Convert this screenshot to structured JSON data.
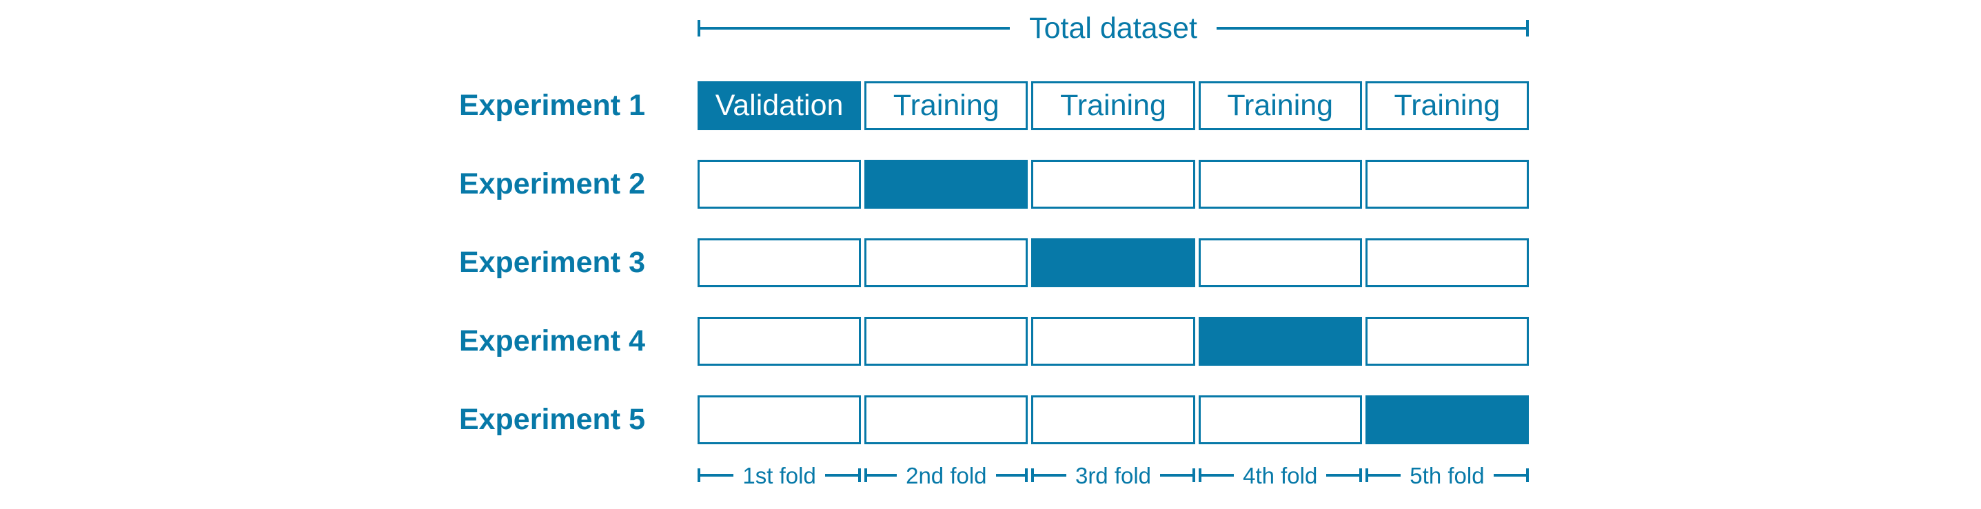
{
  "colors": {
    "accent": "#0779a8",
    "background": "#ffffff",
    "validation_cell_text": "#ffffff"
  },
  "header": {
    "total_dataset_label": "Total dataset"
  },
  "experiments": [
    {
      "label": "Experiment 1",
      "highlighted_fold": 1,
      "cells": [
        "Validation",
        "Training",
        "Training",
        "Training",
        "Training"
      ]
    },
    {
      "label": "Experiment 2",
      "highlighted_fold": 2,
      "cells": [
        "",
        "",
        "",
        "",
        ""
      ]
    },
    {
      "label": "Experiment 3",
      "highlighted_fold": 3,
      "cells": [
        "",
        "",
        "",
        "",
        ""
      ]
    },
    {
      "label": "Experiment 4",
      "highlighted_fold": 4,
      "cells": [
        "",
        "",
        "",
        "",
        ""
      ]
    },
    {
      "label": "Experiment 5",
      "highlighted_fold": 5,
      "cells": [
        "",
        "",
        "",
        "",
        ""
      ]
    }
  ],
  "folds": [
    "1st fold",
    "2nd fold",
    "3rd fold",
    "4th fold",
    "5th fold"
  ]
}
